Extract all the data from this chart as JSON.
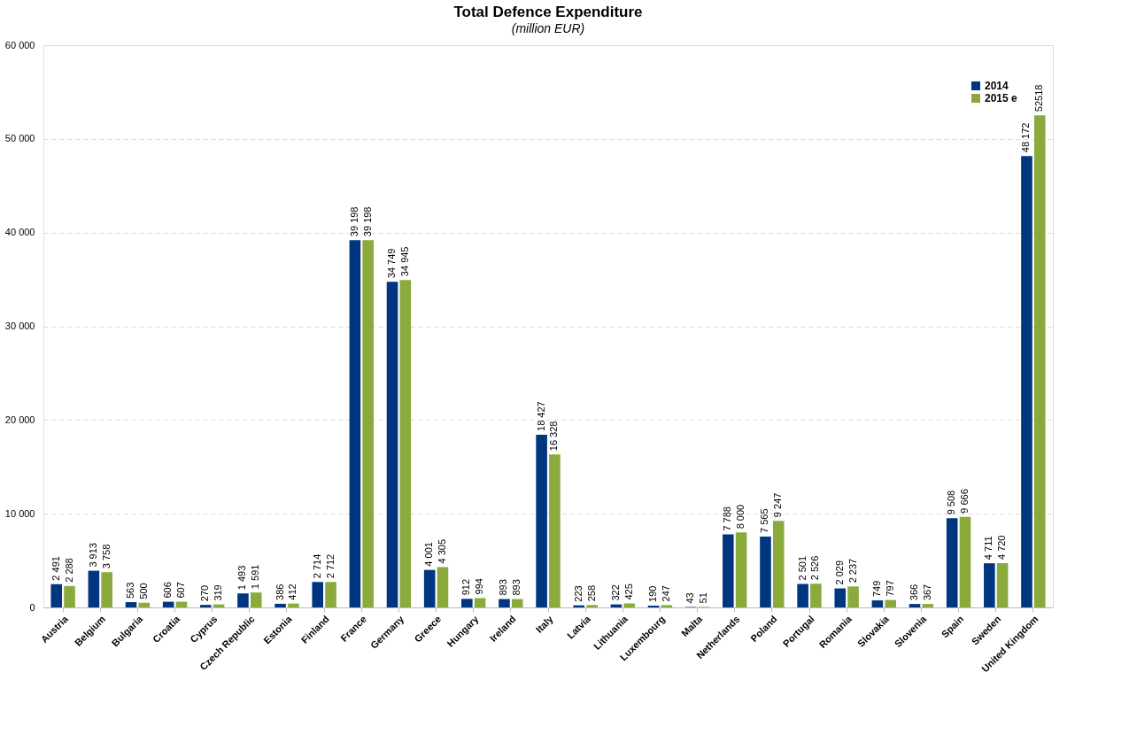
{
  "chart_data": {
    "type": "bar",
    "title": "Total Defence Expenditure",
    "subtitle": "(million EUR)",
    "categories": [
      "Austria",
      "Belgium",
      "Bulgaria",
      "Croatia",
      "Cyprus",
      "Czech Republic",
      "Estonia",
      "Finland",
      "France",
      "Germany",
      "Greece",
      "Hungary",
      "Ireland",
      "Italy",
      "Latvia",
      "Lithuania",
      "Luxembourg",
      "Malta",
      "Netherlands",
      "Poland",
      "Portugal",
      "Romania",
      "Slovakia",
      "Slovenia",
      "Spain",
      "Sweden",
      "United Kingdom"
    ],
    "series": [
      {
        "name": "2014",
        "color": "#003580",
        "values": [
          2491,
          3913,
          563,
          606,
          270,
          1493,
          386,
          2714,
          39198,
          34749,
          4001,
          912,
          893,
          18427,
          223,
          322,
          190,
          43,
          7788,
          7565,
          2501,
          2029,
          749,
          366,
          9508,
          4711,
          48172
        ],
        "value_labels": [
          "2 491",
          "3 913",
          "563",
          "606",
          "270",
          "1 493",
          "386",
          "2 714",
          "39 198",
          "34 749",
          "4 001",
          "912",
          "893",
          "18 427",
          "223",
          "322",
          "190",
          "43",
          "7 788",
          "7 565",
          "2 501",
          "2 029",
          "749",
          "366",
          "9 508",
          "4 711",
          "48 172"
        ]
      },
      {
        "name": "2015 e",
        "color": "#8aab3c",
        "values": [
          2288,
          3758,
          500,
          607,
          319,
          1591,
          412,
          2712,
          39198,
          34945,
          4305,
          994,
          893,
          16328,
          258,
          425,
          247,
          51,
          8000,
          9247,
          2526,
          2237,
          797,
          367,
          9666,
          4720,
          52518
        ],
        "value_labels": [
          "2 288",
          "3 758",
          "500",
          "607",
          "319",
          "1 591",
          "412",
          "2 712",
          "39 198",
          "34 945",
          "4 305",
          "994",
          "893",
          "16 328",
          "258",
          "425",
          "247",
          "51",
          "8 000",
          "9 247",
          "2 526",
          "2 237",
          "797",
          "367",
          "9 666",
          "4 720",
          "52518"
        ]
      }
    ],
    "ylim": [
      0,
      60000
    ],
    "yticks": [
      0,
      {
        "value": 10000,
        "label": "10 000"
      },
      {
        "value": 20000,
        "label": "20 000"
      },
      {
        "value": 30000,
        "label": "30 000"
      },
      {
        "value": 40000,
        "label": "40 000"
      },
      {
        "value": 50000,
        "label": "50 000"
      },
      {
        "value": 60000,
        "label": "60 000"
      }
    ],
    "grid": "y",
    "legend": "top right"
  }
}
